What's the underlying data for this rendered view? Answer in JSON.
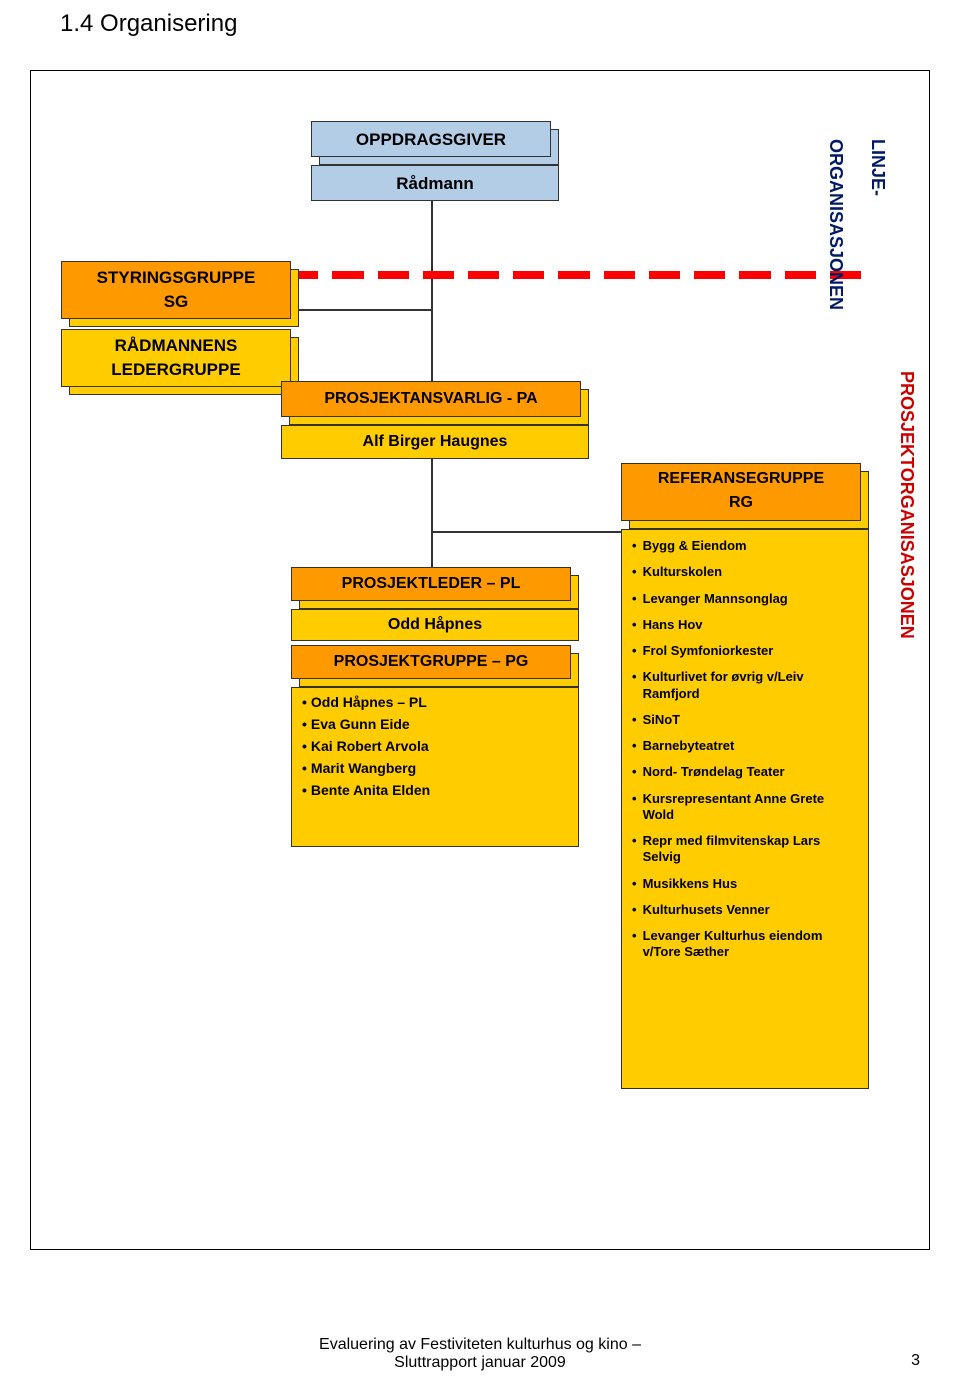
{
  "title": "1.4  Organisering",
  "colors": {
    "blue": "#b4cde6",
    "orange_main": "#ff9900",
    "orange_shadow": "#ffcc00",
    "red": "#ff0000",
    "navy": "#001a66",
    "text_red": "#cc0000"
  },
  "boxes": {
    "oppdragsgiver": {
      "title": "OPPDRAGSGIVER",
      "sub": "Rådmann"
    },
    "styringsgruppe": {
      "title": "STYRINGSGRUPPE",
      "sub": "SG"
    },
    "radmannens": {
      "line1": "RÅDMANNENS",
      "line2": "LEDERGRUPPE"
    },
    "prosjektansvarlig": {
      "title": "PROSJEKTANSVARLIG - PA",
      "sub": "Alf Birger Haugnes"
    },
    "prosjektleder": {
      "title": "PROSJEKTLEDER – PL",
      "sub": "Odd Håpnes"
    },
    "prosjektgruppe": {
      "title": "PROSJEKTGRUPPE – PG"
    },
    "referansegruppe": {
      "title": "REFERANSEGRUPPE",
      "sub": "RG"
    }
  },
  "pg_members": [
    "Odd Håpnes – PL",
    "Eva Gunn Eide",
    "Kai Robert Arvola",
    "Marit Wangberg",
    "Bente Anita Elden"
  ],
  "ref_items": [
    "Bygg & Eiendom",
    "Kulturskolen",
    "Levanger Mannsonglag",
    "Hans Hov",
    "Frol Symfoniorkester",
    "Kulturlivet for øvrig v/Leiv Ramfjord",
    "SiNoT",
    "Barnebyteatret",
    "Nord- Trøndelag Teater",
    "Kursrepresentant Anne Grete Wold",
    "Repr med filmvitenskap Lars Selvig",
    "Musikkens Hus",
    "Kulturhusets Venner",
    "Levanger Kulturhus eiendom v/Tore Sæther"
  ],
  "side_labels": {
    "top_right_line1": "LINJE-",
    "top_right_line2": "ORGANISASJONEN",
    "right_side": "PROSJEKTORGANISASJONEN"
  },
  "footer": {
    "line1": "Evaluering av Festiviteten kulturhus og kino –",
    "line2": "Sluttrapport januar 2009",
    "page": "3"
  }
}
